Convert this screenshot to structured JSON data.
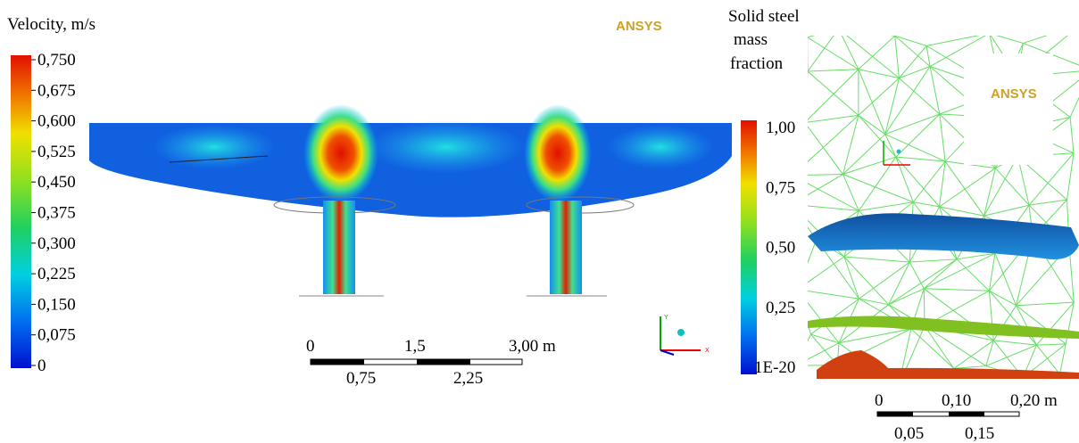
{
  "velocity_legend": {
    "title": "Velocity, m/s",
    "ticks": [
      "0,750",
      "0,675",
      "0,600",
      "0,525",
      "0,450",
      "0,375",
      "0,300",
      "0,225",
      "0,150",
      "0,075",
      "0"
    ]
  },
  "logos": [
    "ANSYS",
    "ANSYS"
  ],
  "left_scale": {
    "top": [
      "0",
      "1,5",
      "3,00  m"
    ],
    "bottom": [
      "0,75",
      "2,25"
    ]
  },
  "left_triad": [
    "Y",
    "X"
  ],
  "fraction_legend": {
    "title": [
      "Solid steel",
      "mass",
      "fraction"
    ],
    "ticks": [
      "1,00",
      "0,75",
      "0,50",
      "0,25",
      "1E-20"
    ]
  },
  "right_scale": {
    "top": [
      "0",
      "0,10",
      "0,20  m"
    ],
    "bottom": [
      "0,05",
      "0,15"
    ]
  }
}
